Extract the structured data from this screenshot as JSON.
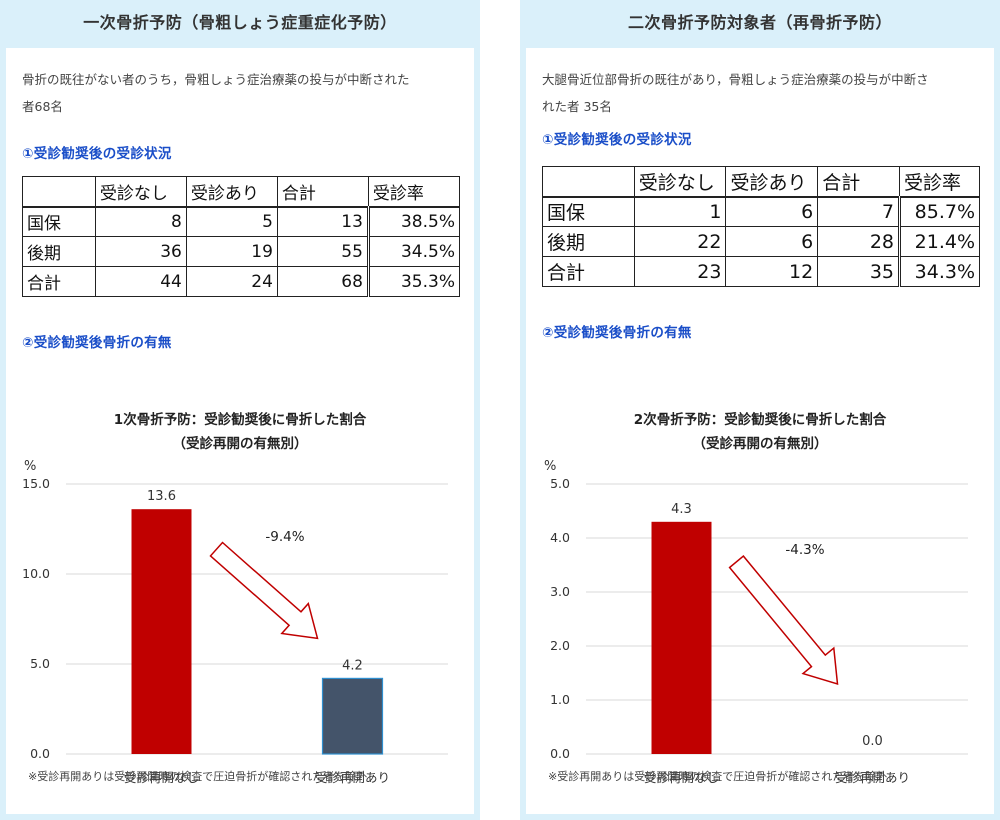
{
  "panels": [
    {
      "title": "一次骨折予防（骨粗しょう症重症化予防）",
      "description_line1": "骨折の既往がない者のうち，骨粗しょう症治療薬の投与が中断された",
      "description_line2": "者68名",
      "section1": "①受診勧奨後の受診状況",
      "table": {
        "headers": [
          "",
          "受診なし",
          "受診あり",
          "合計",
          "受診率"
        ],
        "rows": [
          [
            "国保",
            "8",
            "5",
            "13",
            "38.5%"
          ],
          [
            "後期",
            "36",
            "19",
            "55",
            "34.5%"
          ],
          [
            "合計",
            "44",
            "24",
            "68",
            "35.3%"
          ]
        ]
      },
      "section2": "②受診勧奨後骨折の有無",
      "chart_title_line1": "1次骨折予防：受診勧奨後に骨折した割合",
      "chart_title_line2": "（受診再開の有無別）",
      "note": "※受診再開ありは受診再開時の検査で圧迫骨折が確認された者を除外"
    },
    {
      "title": "二次骨折予防対象者（再骨折予防）",
      "description_line1": "大腿骨近位部骨折の既往があり，骨粗しょう症治療薬の投与が中断さ",
      "description_line2": "れた者 35名",
      "section1": "①受診勧奨後の受診状況",
      "table": {
        "headers": [
          "",
          "受診なし",
          "受診あり",
          "合計",
          "受診率"
        ],
        "rows": [
          [
            "国保",
            "1",
            "6",
            "7",
            "85.7%"
          ],
          [
            "後期",
            "22",
            "6",
            "28",
            "21.4%"
          ],
          [
            "合計",
            "23",
            "12",
            "35",
            "34.3%"
          ]
        ]
      },
      "section2": "②受診勧奨後骨折の有無",
      "chart_title_line1": "2次骨折予防：受診勧奨後に骨折した割合",
      "chart_title_line2": "（受診再開の有無別）",
      "note": "※受診再開ありは受診再開時の検査で圧迫骨折が確認された者を除外"
    }
  ],
  "chart_data": [
    {
      "type": "bar",
      "title": "1次骨折予防：受診勧奨後に骨折した割合（受診再開の有無別）",
      "ylabel": "%",
      "categories": [
        "受診再開なし",
        "受診再開あり"
      ],
      "values": [
        13.6,
        4.2
      ],
      "value_labels": [
        "13.6",
        "4.2"
      ],
      "bar_colors": [
        "#c00000",
        "#44546a"
      ],
      "ylim": [
        0,
        15
      ],
      "yticks": [
        0,
        5,
        10,
        15
      ],
      "ytick_labels": [
        "0.0",
        "5.0",
        "10.0",
        "15.0"
      ],
      "annotation": "-9.4%",
      "grid": true
    },
    {
      "type": "bar",
      "title": "2次骨折予防：受診勧奨後に骨折した割合（受診再開の有無別）",
      "ylabel": "%",
      "categories": [
        "受診再開なし",
        "受診再開あり"
      ],
      "values": [
        4.3,
        0.0
      ],
      "value_labels": [
        "4.3",
        "0.0"
      ],
      "bar_colors": [
        "#c00000",
        "#44546a"
      ],
      "ylim": [
        0,
        5
      ],
      "yticks": [
        0,
        1,
        2,
        3,
        4,
        5
      ],
      "ytick_labels": [
        "0.0",
        "1.0",
        "2.0",
        "3.0",
        "4.0",
        "5.0"
      ],
      "annotation": "-4.3%",
      "grid": true
    }
  ]
}
